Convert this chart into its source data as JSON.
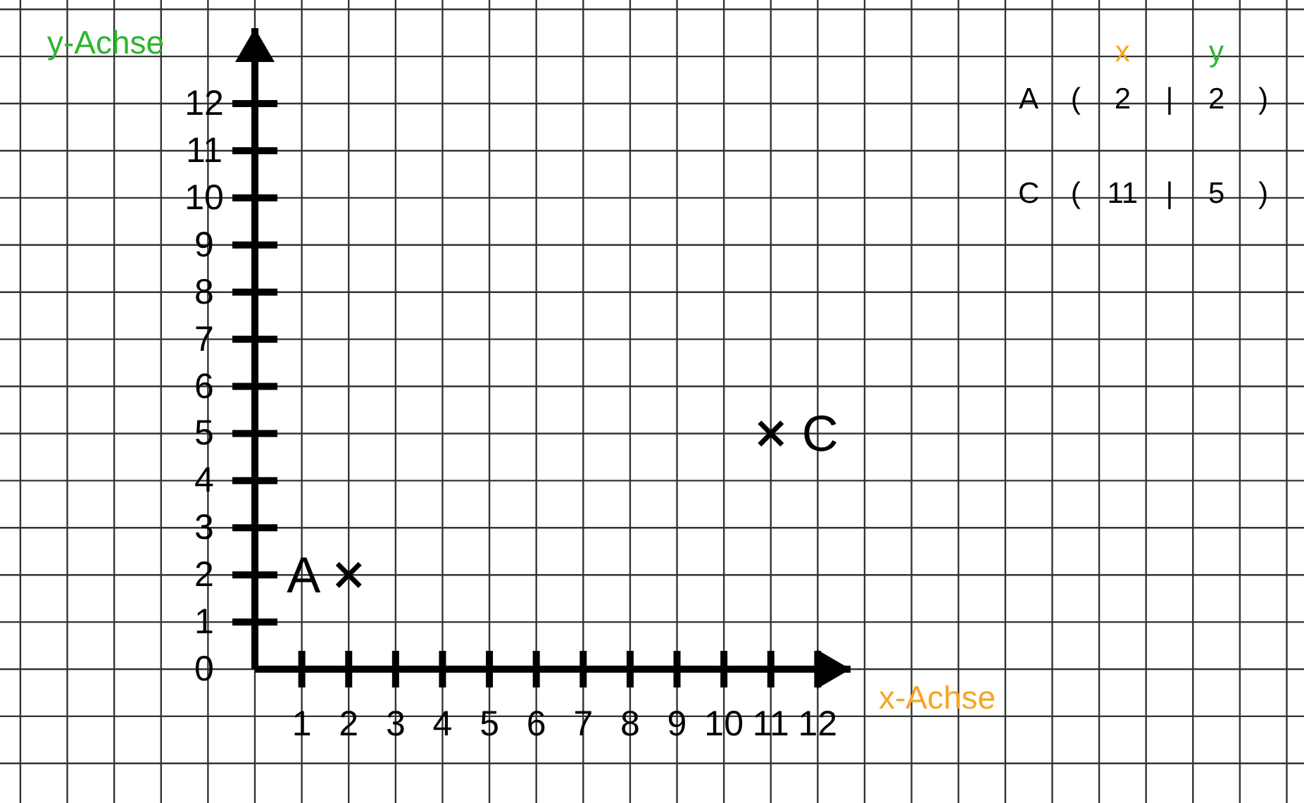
{
  "chart_data": {
    "type": "scatter",
    "xlabel": "x-Achse",
    "ylabel": "y-Achse",
    "x": [
      2,
      11
    ],
    "values": [
      2,
      5
    ],
    "color": "#000000",
    "marker": "cross",
    "xlim": [
      0,
      12.7
    ],
    "ylim": [
      0,
      13.6
    ],
    "xticks": [
      1,
      2,
      3,
      4,
      5,
      6,
      7,
      8,
      9,
      10,
      11,
      12
    ],
    "yticks": [
      0,
      1,
      2,
      3,
      4,
      5,
      6,
      7,
      8,
      9,
      10,
      11,
      12
    ],
    "grid": true,
    "annotations": [
      {
        "text": "A",
        "x": 2,
        "y": 2
      },
      {
        "text": "C",
        "x": 11,
        "y": 5
      },
      "x",
      "y",
      "A",
      "(",
      "2",
      "|",
      "2",
      ")",
      "C",
      "(",
      "11",
      "|",
      "5",
      ")"
    ]
  }
}
